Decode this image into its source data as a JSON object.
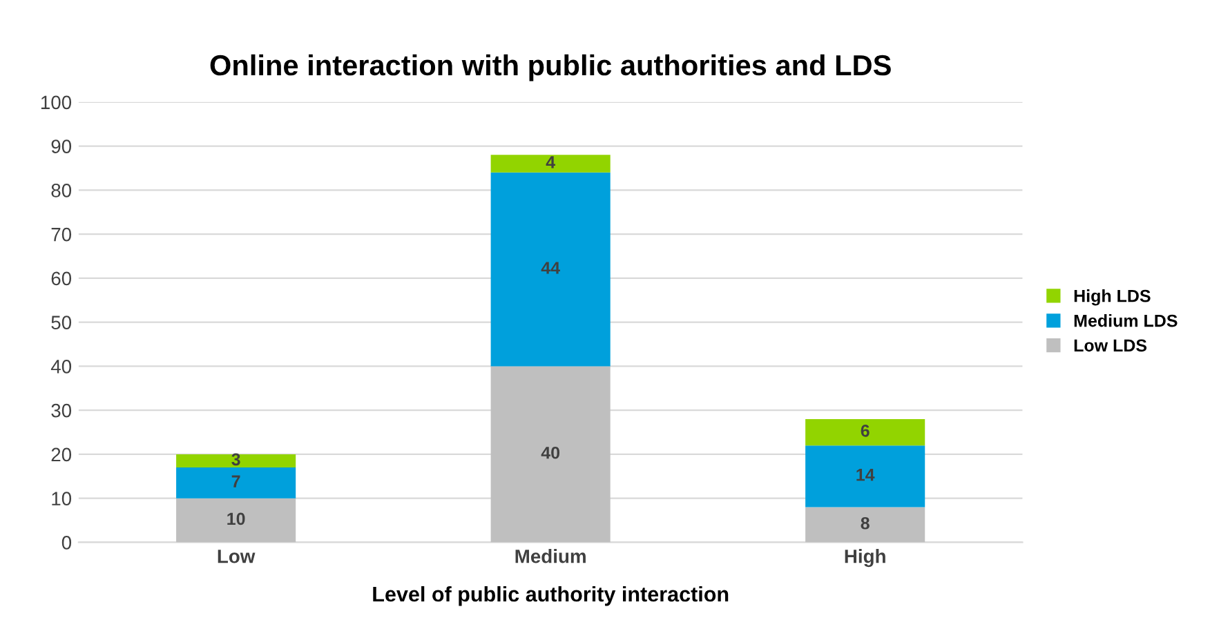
{
  "chart_data": {
    "type": "bar",
    "title": "Online interaction with public authorities and LDS",
    "xlabel": "Level of public authority interaction",
    "categories": [
      "Low",
      "Medium",
      "High"
    ],
    "stacked": true,
    "series": [
      {
        "name": "Low LDS",
        "color": "#bfbfbf",
        "values": [
          10,
          40,
          8
        ]
      },
      {
        "name": "Medium LDS",
        "color": "#00a0dc",
        "values": [
          7,
          44,
          14
        ]
      },
      {
        "name": "High LDS",
        "color": "#92d400",
        "values": [
          3,
          4,
          6
        ]
      }
    ],
    "ylim": [
      0,
      100
    ],
    "yticks": [
      0,
      10,
      20,
      30,
      40,
      50,
      60,
      70,
      80,
      90,
      100
    ],
    "grid": "y",
    "legend": "right",
    "data_labels": true
  }
}
